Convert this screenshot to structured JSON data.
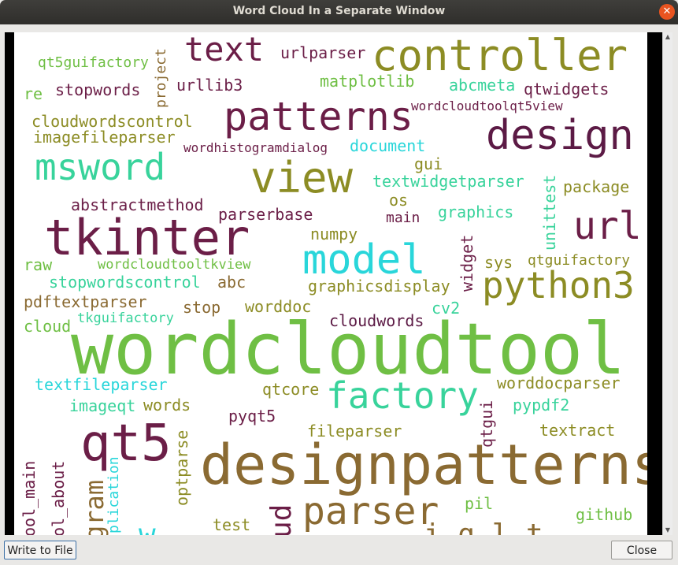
{
  "window": {
    "title": "Word Cloud In a Separate Window"
  },
  "buttons": {
    "write_to_file": "Write to File",
    "close": "Close"
  },
  "colors": {
    "plum": "#6b1e47",
    "olive": "#8c8c24",
    "brown": "#8a6a32",
    "green": "#6fbf44",
    "teal": "#38d39b",
    "cyan": "#29d6da",
    "darkplum": "#5c1a45"
  },
  "words": {
    "wordcloudtool": "wordcloudtool",
    "designpatterns": "designpatterns",
    "controller": "controller",
    "patterns": "patterns",
    "design": "design",
    "view": "view",
    "msword": "msword",
    "tkinter": "tkinter",
    "model": "model",
    "python3": "python3",
    "url": "url",
    "qt5": "qt5",
    "factory": "factory",
    "parser": "parser",
    "text": "text",
    "urlparser": "urlparser",
    "qt5guifactory": "qt5guifactory",
    "project": "project",
    "matplotlib": "matplotlib",
    "abcmeta": "abcmeta",
    "qtwidgets": "qtwidgets",
    "re": "re",
    "stopwords": "stopwords",
    "urllib3": "urllib3",
    "wordcloudtoolqt5view": "wordcloudtoolqt5view",
    "cloudwordscontrol": "cloudwordscontrol",
    "imagefileparser": "imagefileparser",
    "wordhistogramdialog": "wordhistogramdialog",
    "document": "document",
    "gui": "gui",
    "textwidgetparser": "textwidgetparser",
    "unittest": "unittest",
    "package": "package",
    "abstractmethod": "abstractmethod",
    "os": "os",
    "parserbase": "parserbase",
    "main": "main",
    "graphics": "graphics",
    "numpy": "numpy",
    "widget": "widget",
    "raw": "raw",
    "wordcloudtooltkview": "wordcloudtooltkview",
    "sys": "sys",
    "qtguifactory": "qtguifactory",
    "stopwordscontrol": "stopwordscontrol",
    "abc": "abc",
    "graphicsdisplay": "graphicsdisplay",
    "pdftextparser": "pdftextparser",
    "stop": "stop",
    "worddoc": "worddoc",
    "cv2": "cv2",
    "cloud": "cloud",
    "tkguifactory": "tkguifactory",
    "cloudwords": "cloudwords",
    "textfileparser": "textfileparser",
    "qtcore": "qtcore",
    "worddocparser": "worddocparser",
    "imageqt": "imageqt",
    "words": "words",
    "pyqt5": "pyqt5",
    "qtgui": "qtgui",
    "pypdf2": "pypdf2",
    "fileparser": "fileparser",
    "textract": "textract",
    "optparse": "optparse",
    "pil": "pil",
    "github": "github",
    "test": "test",
    "ool_main": "ool_main",
    "ol_about": "ol_about",
    "gram": "gram",
    "plication": "plication",
    "ud": "ud",
    "partial_w": "w",
    "partial_inglet": "i  g l  t"
  }
}
